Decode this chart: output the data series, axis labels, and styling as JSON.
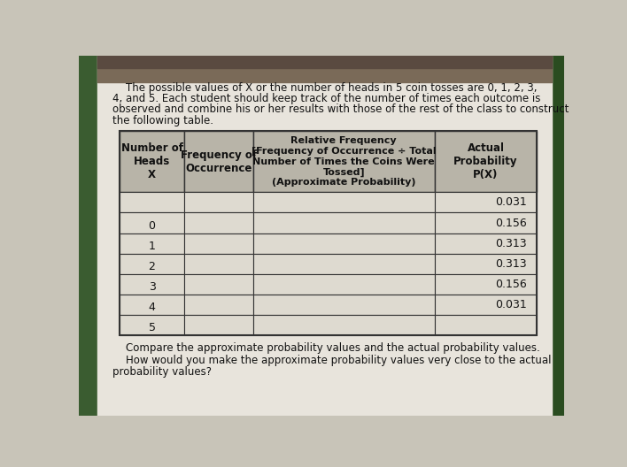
{
  "intro_lines": [
    "    The possible values of X or the number of heads in 5 coin tosses are 0, 1, 2, 3,",
    "4, and 5. Each student should keep track of the number of times each outcome is",
    "observed and combine his or her results with those of the rest of the class to construct",
    "the following table."
  ],
  "col_headers": [
    "Number of\nHeads\nX",
    "Frequency of\nOccurrence",
    "Relative Frequency\n[Frequency of Occurrence ÷ Total\nNumber of Times the Coins Were\nTossed]\n(Approximate Probability)",
    "Actual\nProbability\nP(X)"
  ],
  "x_values": [
    "",
    "0",
    "1",
    "2",
    "3",
    "4",
    "5"
  ],
  "prob_values": [
    "0.031",
    "0.156",
    "0.313",
    "0.313",
    "0.156",
    "0.031",
    ""
  ],
  "footer1": "    Compare the approximate probability values and the actual probability values.",
  "footer2": "    How would you make the approximate probability values very close to the actual",
  "footer3": "probability values?",
  "bg_color": "#c8c4b8",
  "paper_color": "#e8e4dc",
  "header_bg": "#b8b4a8",
  "cell_bg": "#dedad0",
  "line_color": "#333333",
  "text_color": "#111111",
  "green_left": "#3a5c30",
  "green_right": "#2a4c20"
}
